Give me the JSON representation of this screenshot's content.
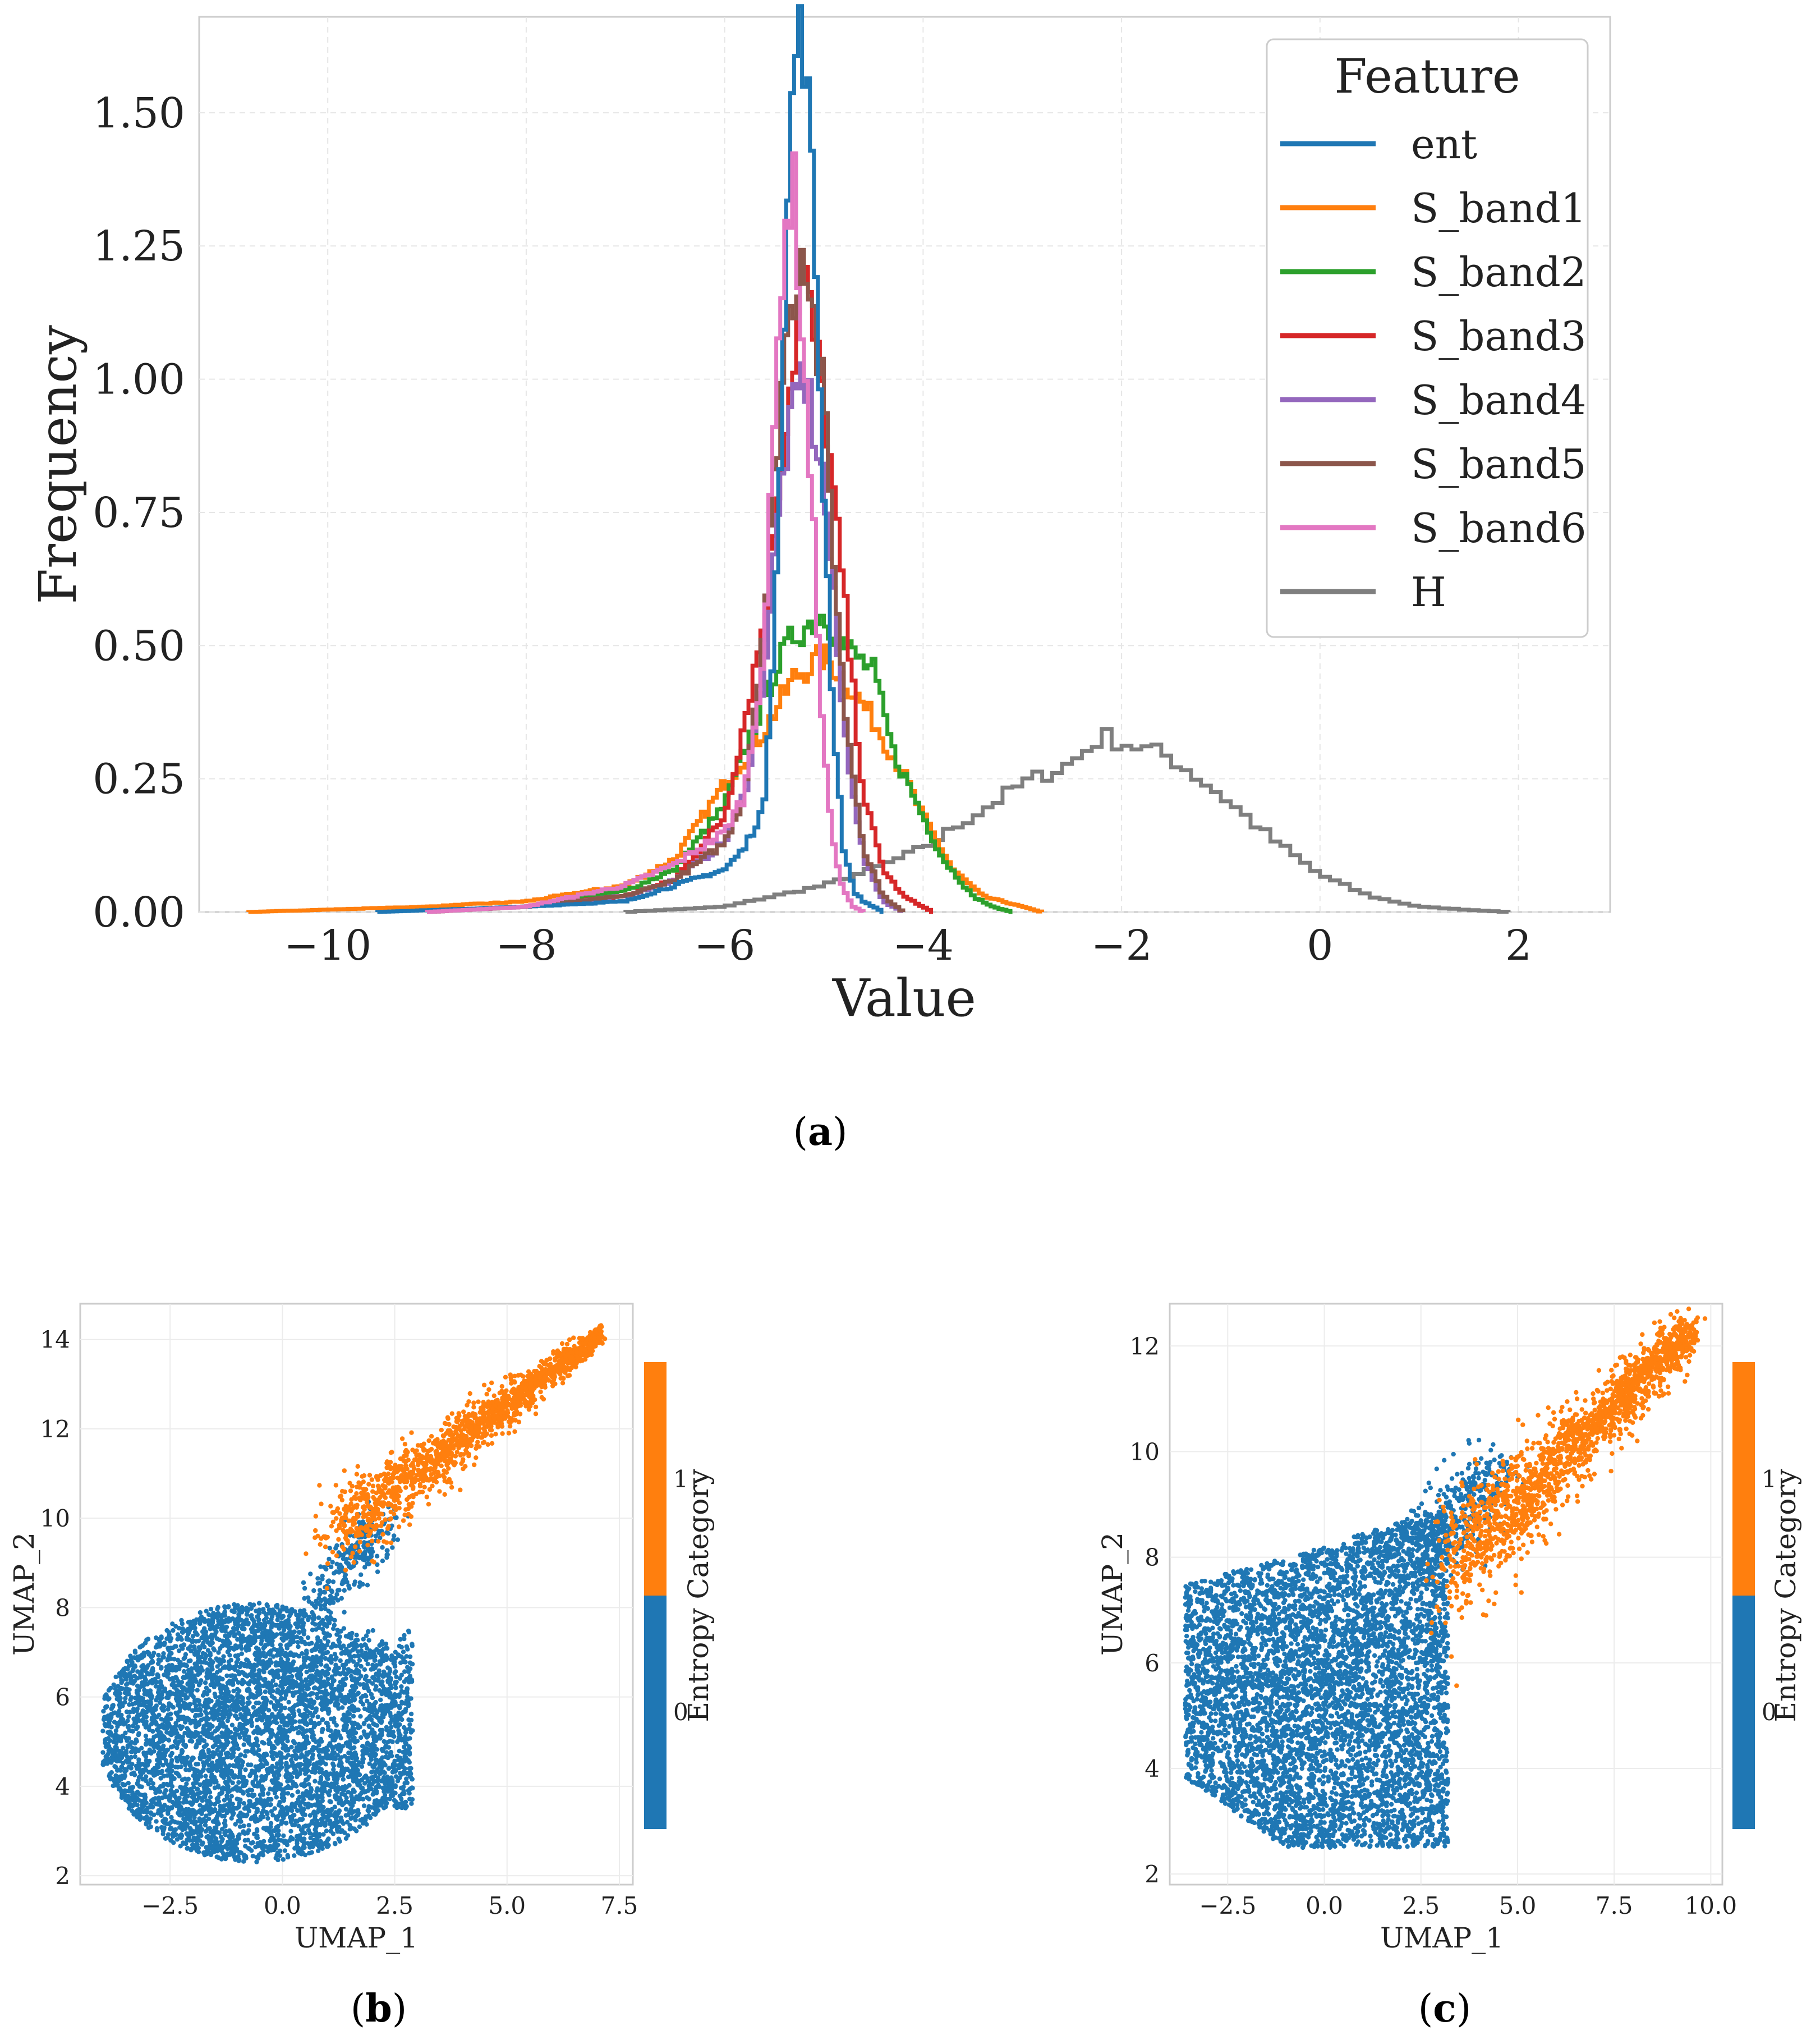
{
  "chart_data": [
    {
      "id": "a",
      "type": "line",
      "subtype": "step-histogram",
      "title": "",
      "xlabel": "Value",
      "ylabel": "Frequency",
      "xlim": [
        -10.9,
        2.5
      ],
      "ylim": [
        0,
        1.68
      ],
      "xticks": [
        -10,
        -8,
        -6,
        -4,
        -2,
        0,
        2
      ],
      "xtick_labels": [
        "−10",
        "−8",
        "−6",
        "−4",
        "−2",
        "0",
        "2"
      ],
      "yticks": [
        0,
        0.25,
        0.5,
        0.75,
        1.0,
        1.25,
        1.5
      ],
      "ytick_labels": [
        "0.00",
        "0.25",
        "0.50",
        "0.75",
        "1.00",
        "1.25",
        "1.50"
      ],
      "grid": true,
      "legend": {
        "title": "Feature",
        "position": "top-right"
      },
      "series": [
        {
          "name": "ent",
          "color": "#1f77b4",
          "x": [
            -9.5,
            -8,
            -7,
            -6.5,
            -6,
            -5.8,
            -5.6,
            -5.5,
            -5.4,
            -5.3,
            -5.2,
            -5.1,
            -5.0,
            -4.9,
            -4.8,
            -4.7,
            -4.6,
            -4.4
          ],
          "y": [
            0,
            0.01,
            0.02,
            0.05,
            0.08,
            0.12,
            0.2,
            0.55,
            1.1,
            1.62,
            1.64,
            1.3,
            0.8,
            0.35,
            0.12,
            0.04,
            0.02,
            0
          ]
        },
        {
          "name": "S_band1",
          "color": "#ff7f0e",
          "x": [
            -10.8,
            -9,
            -8,
            -7,
            -6.5,
            -6,
            -5.6,
            -5.3,
            -5.0,
            -4.8,
            -4.5,
            -4.2,
            -4.0,
            -3.7,
            -3.4,
            -3.0,
            -2.8
          ],
          "y": [
            0,
            0.01,
            0.02,
            0.05,
            0.1,
            0.24,
            0.34,
            0.44,
            0.48,
            0.44,
            0.36,
            0.26,
            0.18,
            0.08,
            0.03,
            0.01,
            0
          ]
        },
        {
          "name": "S_band2",
          "color": "#2ca02c",
          "x": [
            -9,
            -8,
            -7,
            -6.5,
            -6,
            -5.7,
            -5.5,
            -5.3,
            -5.0,
            -4.8,
            -4.5,
            -4.3,
            -4.0,
            -3.8,
            -3.5,
            -3.3,
            -3.1
          ],
          "y": [
            0,
            0.01,
            0.04,
            0.08,
            0.2,
            0.35,
            0.45,
            0.52,
            0.56,
            0.5,
            0.45,
            0.3,
            0.18,
            0.1,
            0.03,
            0.01,
            0
          ]
        },
        {
          "name": "S_band3",
          "color": "#d62728",
          "x": [
            -9,
            -8,
            -7,
            -6.5,
            -6,
            -5.8,
            -5.6,
            -5.4,
            -5.2,
            -5.0,
            -4.8,
            -4.6,
            -4.4,
            -4.2,
            -4.0,
            -3.9
          ],
          "y": [
            0,
            0.01,
            0.03,
            0.06,
            0.18,
            0.36,
            0.55,
            0.9,
            1.2,
            0.95,
            0.6,
            0.22,
            0.08,
            0.03,
            0.01,
            0
          ]
        },
        {
          "name": "S_band4",
          "color": "#9467bd",
          "x": [
            -9,
            -8,
            -7,
            -6.5,
            -6,
            -5.8,
            -5.6,
            -5.4,
            -5.2,
            -5.0,
            -4.8,
            -4.6,
            -4.4,
            -4.2
          ],
          "y": [
            0,
            0.01,
            0.03,
            0.06,
            0.13,
            0.22,
            0.45,
            0.85,
            1.02,
            0.8,
            0.35,
            0.1,
            0.02,
            0
          ]
        },
        {
          "name": "S_band5",
          "color": "#8c564b",
          "x": [
            -9,
            -8,
            -7,
            -6.5,
            -6,
            -5.8,
            -5.6,
            -5.4,
            -5.2,
            -5.0,
            -4.8,
            -4.6,
            -4.4,
            -4.2
          ],
          "y": [
            0,
            0.01,
            0.03,
            0.06,
            0.13,
            0.22,
            0.55,
            1.05,
            1.28,
            0.95,
            0.4,
            0.12,
            0.03,
            0
          ]
        },
        {
          "name": "S_band6",
          "color": "#e377c2",
          "x": [
            -9,
            -8,
            -7,
            -6.5,
            -6,
            -5.8,
            -5.6,
            -5.5,
            -5.4,
            -5.3,
            -5.2,
            -5.1,
            -5.0,
            -4.9,
            -4.8,
            -4.7,
            -4.6
          ],
          "y": [
            0,
            0.01,
            0.05,
            0.09,
            0.15,
            0.22,
            0.5,
            0.9,
            1.3,
            1.35,
            1.05,
            0.7,
            0.3,
            0.12,
            0.04,
            0.01,
            0
          ]
        },
        {
          "name": "H",
          "color": "#7f7f7f",
          "x": [
            -7,
            -6,
            -5.5,
            -5,
            -4.5,
            -4,
            -3.5,
            -3,
            -2.5,
            -2.2,
            -2,
            -1.5,
            -1,
            -0.5,
            0,
            0.5,
            1,
            1.5,
            1.9
          ],
          "y": [
            0,
            0.01,
            0.03,
            0.05,
            0.08,
            0.12,
            0.18,
            0.24,
            0.28,
            0.33,
            0.32,
            0.29,
            0.22,
            0.14,
            0.07,
            0.03,
            0.01,
            0.004,
            0
          ]
        }
      ]
    },
    {
      "id": "b",
      "type": "scatter",
      "title": "",
      "xlabel": "UMAP_1",
      "ylabel": "UMAP_2",
      "xlim": [
        -4.5,
        7.8
      ],
      "ylim": [
        1.8,
        14.8
      ],
      "xticks": [
        -2.5,
        0.0,
        2.5,
        5.0,
        7.5
      ],
      "xtick_labels": [
        "−2.5",
        "0.0",
        "2.5",
        "5.0",
        "7.5"
      ],
      "yticks": [
        2,
        4,
        6,
        8,
        10,
        12,
        14
      ],
      "ytick_labels": [
        "2",
        "4",
        "6",
        "8",
        "10",
        "12",
        "14"
      ],
      "grid": true,
      "colorbar": {
        "label": "Entropy Category",
        "ticks": [
          "0",
          "1"
        ],
        "colors": [
          "#1f77b4",
          "#ff7f0e"
        ]
      },
      "series": [
        {
          "name": "0",
          "color": "#1f77b4",
          "description_region": "blob cluster centered near (0, 5.5) spanning x -4..3, y 2.3..8.5; sparse tail to (2, 10)"
        },
        {
          "name": "1",
          "color": "#ff7f0e",
          "description_region": "elongated tail from (1, 9.5) to (7.2, 14.2)"
        }
      ]
    },
    {
      "id": "c",
      "type": "scatter",
      "title": "",
      "xlabel": "UMAP_1",
      "ylabel": "UMAP_2",
      "xlim": [
        -4.0,
        10.3
      ],
      "ylim": [
        1.8,
        12.8
      ],
      "xticks": [
        -2.5,
        0.0,
        2.5,
        5.0,
        7.5,
        10.0
      ],
      "xtick_labels": [
        "−2.5",
        "0.0",
        "2.5",
        "5.0",
        "7.5",
        "10.0"
      ],
      "yticks": [
        2,
        4,
        6,
        8,
        10,
        12
      ],
      "ytick_labels": [
        "2",
        "4",
        "6",
        "8",
        "10",
        "12"
      ],
      "grid": true,
      "colorbar": {
        "label": "Entropy Category",
        "ticks": [
          "0",
          "1"
        ],
        "colors": [
          "#1f77b4",
          "#ff7f0e"
        ]
      },
      "series": [
        {
          "name": "0",
          "color": "#1f77b4",
          "description_region": "broad cluster spanning x -3.5..3.5, y 2.5..9"
        },
        {
          "name": "1",
          "color": "#ff7f0e",
          "description_region": "diagonal band from (3, 8) to (9.5, 12.3)"
        }
      ]
    }
  ],
  "captions": {
    "a": "(a)",
    "b": "(b)",
    "c": "(c)"
  },
  "caption_letters": {
    "a": "a",
    "b": "b",
    "c": "c"
  }
}
